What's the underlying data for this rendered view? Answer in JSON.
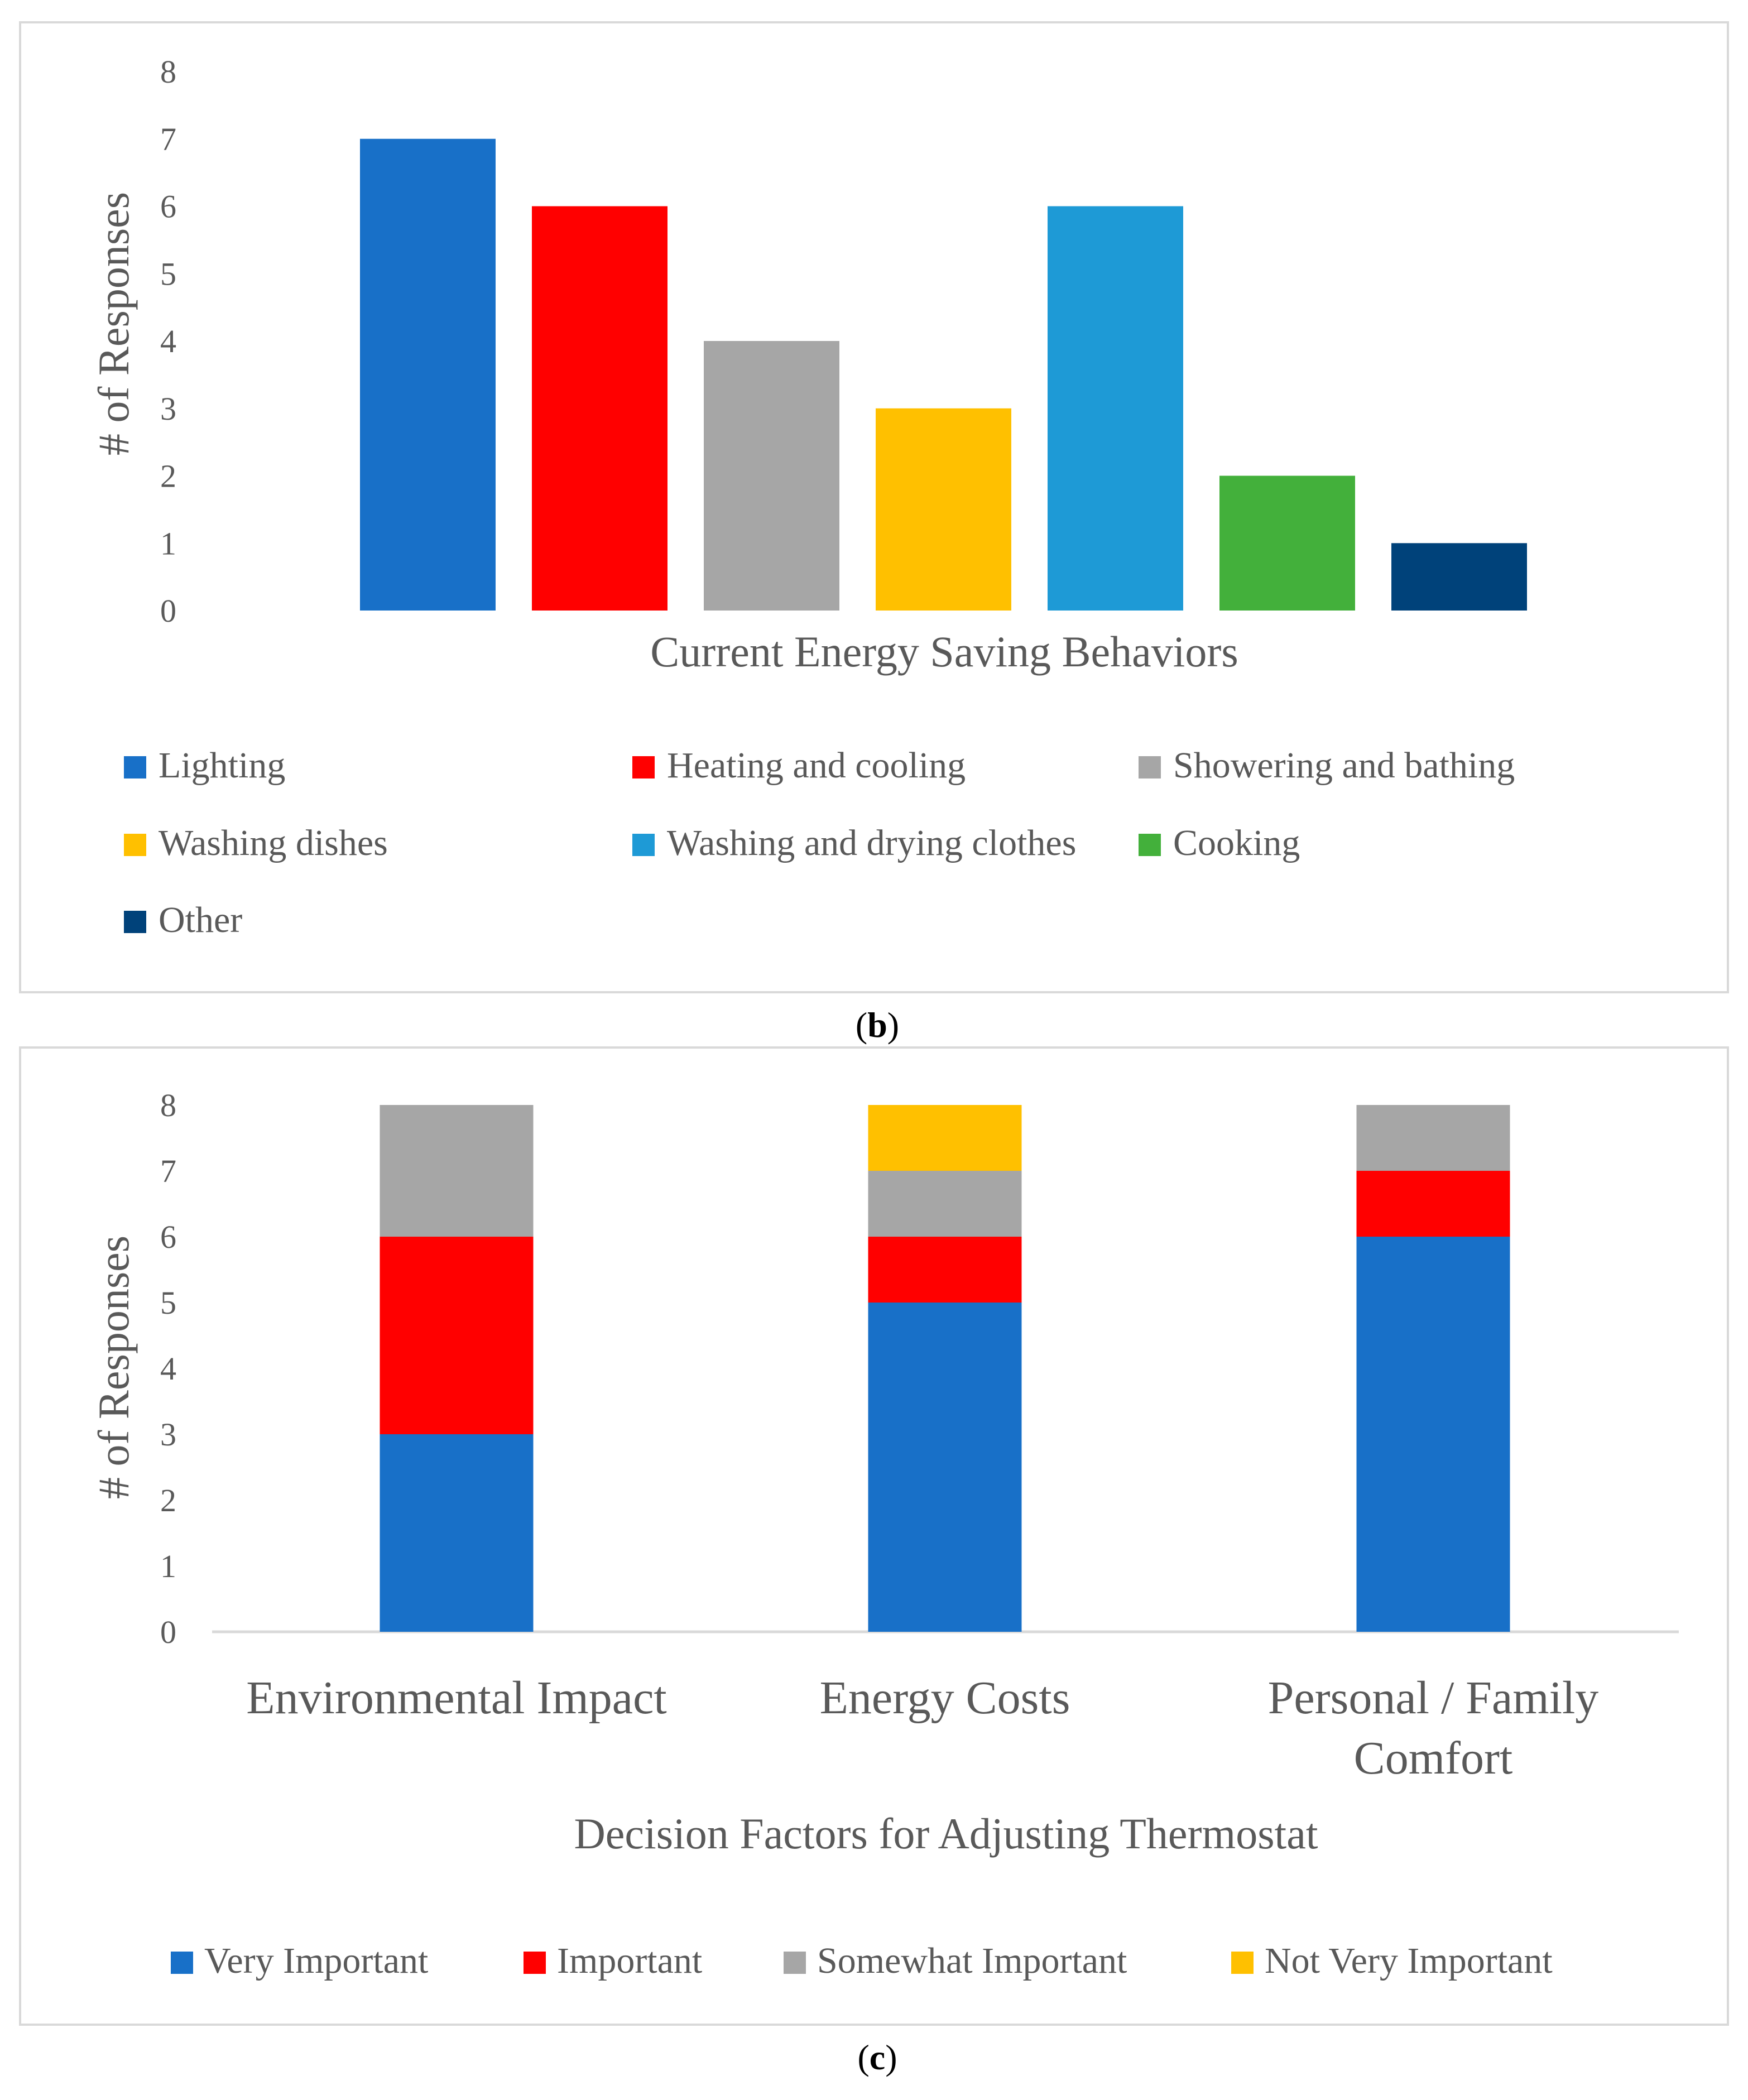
{
  "chart_data": [
    {
      "type": "bar",
      "panel": "b",
      "xlabel": "Current Energy Saving Behaviors",
      "ylabel": "# of Responses",
      "ylim": [
        0,
        8
      ],
      "yticks": [
        0,
        1,
        2,
        3,
        4,
        5,
        6,
        7,
        8
      ],
      "legend_position": "bottom",
      "series": [
        {
          "name": "Lighting",
          "value": 7,
          "color": "#1870C8"
        },
        {
          "name": "Heating and cooling",
          "value": 6,
          "color": "#FF0000"
        },
        {
          "name": "Showering and bathing",
          "value": 4,
          "color": "#A6A6A6"
        },
        {
          "name": "Washing dishes",
          "value": 3,
          "color": "#FFC000"
        },
        {
          "name": "Washing and drying clothes",
          "value": 6,
          "color": "#1E9AD6"
        },
        {
          "name": "Cooking",
          "value": 2,
          "color": "#43B03B"
        },
        {
          "name": "Other",
          "value": 1,
          "color": "#00427A"
        }
      ]
    },
    {
      "type": "bar",
      "stacked": true,
      "panel": "c",
      "xlabel": "Decision Factors for Adjusting Thermostat",
      "ylabel": "# of Responses",
      "ylim": [
        0,
        8
      ],
      "yticks": [
        0,
        1,
        2,
        3,
        4,
        5,
        6,
        7,
        8
      ],
      "legend_position": "bottom",
      "categories": [
        {
          "lines": [
            "Environmental Impact"
          ]
        },
        {
          "lines": [
            "Energy Costs"
          ]
        },
        {
          "lines": [
            "Personal / Family",
            "Comfort"
          ]
        }
      ],
      "series": [
        {
          "name": "Very Important",
          "values": [
            3,
            5,
            6
          ],
          "color": "#1870C8"
        },
        {
          "name": "Important",
          "values": [
            3,
            1,
            1
          ],
          "color": "#FF0000"
        },
        {
          "name": "Somewhat Important",
          "values": [
            2,
            1,
            1
          ],
          "color": "#A6A6A6"
        },
        {
          "name": "Not Very Important",
          "values": [
            0,
            1,
            0
          ],
          "color": "#FFC000"
        }
      ]
    }
  ],
  "captions": {
    "b": {
      "open": "(",
      "letter": "b",
      "close": ")"
    },
    "c": {
      "open": "(",
      "letter": "c",
      "close": ")"
    }
  }
}
